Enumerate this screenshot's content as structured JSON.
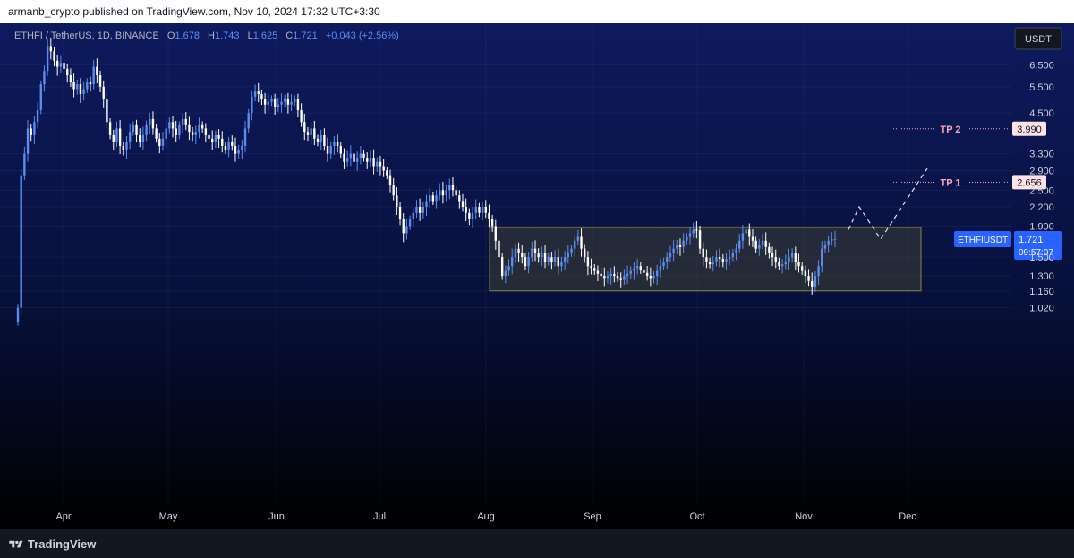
{
  "header": {
    "published_line": "armanb_crypto published on TradingView.com, Nov 10, 2024 17:32 UTC+3:30"
  },
  "symbol_bar": {
    "symbol": "ETHFI / TetherUS, 1D, BINANCE",
    "open_label": "O",
    "open": "1.678",
    "high_label": "H",
    "high": "1.743",
    "low_label": "L",
    "low": "1.625",
    "close_label": "C",
    "close": "1.721",
    "change": "+0.043 (+2.56%)"
  },
  "currency_button": "USDT",
  "footer": {
    "brand": "TradingView"
  },
  "colors": {
    "up": "#5b8def",
    "down": "#ffffff",
    "range_box_fill": "#5a5a2a",
    "range_box_border": "#8a8a3a",
    "target_line": "#f7a8b8",
    "price_tag": "#2962ff"
  },
  "chart_data": {
    "type": "candlestick",
    "title": "",
    "y_scale": "log",
    "ylim": [
      0.95,
      7.6
    ],
    "y_ticks": [
      "6.500",
      "5.500",
      "4.500",
      "3.990",
      "3.300",
      "2.900",
      "2.656",
      "2.500",
      "2.200",
      "1.900",
      "1.721",
      "1.500",
      "1.300",
      "1.160",
      "1.020"
    ],
    "x_ticks": [
      "Apr",
      "May",
      "Jun",
      "Jul",
      "Aug",
      "Sep",
      "Oct",
      "Nov",
      "Dec"
    ],
    "close_series": [
      1.02,
      2.8,
      3.3,
      4.0,
      3.8,
      4.2,
      4.6,
      5.6,
      6.2,
      7.5,
      7.2,
      6.7,
      6.4,
      6.6,
      6.3,
      6.0,
      5.7,
      5.4,
      5.6,
      5.2,
      5.4,
      5.7,
      5.6,
      6.4,
      6.0,
      5.5,
      5.0,
      4.2,
      3.8,
      3.6,
      4.0,
      3.5,
      3.4,
      3.6,
      3.9,
      4.1,
      3.8,
      3.6,
      3.8,
      4.1,
      4.3,
      4.0,
      3.7,
      3.5,
      3.7,
      4.0,
      4.2,
      4.0,
      3.8,
      4.1,
      4.3,
      4.1,
      3.9,
      3.8,
      3.9,
      4.1,
      4.0,
      3.8,
      3.7,
      3.6,
      3.8,
      3.7,
      3.5,
      3.4,
      3.6,
      3.5,
      3.3,
      3.4,
      3.5,
      4.0,
      4.5,
      5.1,
      5.3,
      5.2,
      5.0,
      4.8,
      4.9,
      5.0,
      4.7,
      4.8,
      4.9,
      5.0,
      4.8,
      4.9,
      5.0,
      4.6,
      4.2,
      3.9,
      3.8,
      4.0,
      3.7,
      3.6,
      3.8,
      3.5,
      3.3,
      3.5,
      3.6,
      3.5,
      3.3,
      3.1,
      3.2,
      3.3,
      3.1,
      3.2,
      3.3,
      3.2,
      3.1,
      3.2,
      3.0,
      3.1,
      3.0,
      2.9,
      2.8,
      2.6,
      2.4,
      2.2,
      2.0,
      1.8,
      1.9,
      2.0,
      2.1,
      2.2,
      2.1,
      2.2,
      2.3,
      2.4,
      2.3,
      2.4,
      2.5,
      2.4,
      2.5,
      2.6,
      2.5,
      2.4,
      2.3,
      2.2,
      2.1,
      2.0,
      2.1,
      2.2,
      2.1,
      2.2,
      2.1,
      2.0,
      1.9,
      1.7,
      1.5,
      1.3,
      1.35,
      1.4,
      1.5,
      1.6,
      1.55,
      1.5,
      1.4,
      1.5,
      1.6,
      1.55,
      1.5,
      1.55,
      1.45,
      1.5,
      1.45,
      1.5,
      1.4,
      1.45,
      1.5,
      1.55,
      1.6,
      1.7,
      1.75,
      1.6,
      1.5,
      1.4,
      1.38,
      1.35,
      1.32,
      1.3,
      1.28,
      1.3,
      1.32,
      1.3,
      1.28,
      1.26,
      1.3,
      1.32,
      1.35,
      1.38,
      1.4,
      1.36,
      1.33,
      1.3,
      1.28,
      1.3,
      1.35,
      1.4,
      1.45,
      1.5,
      1.55,
      1.6,
      1.65,
      1.62,
      1.7,
      1.75,
      1.8,
      1.85,
      1.84,
      1.6,
      1.5,
      1.45,
      1.42,
      1.45,
      1.5,
      1.48,
      1.45,
      1.48,
      1.5,
      1.55,
      1.6,
      1.7,
      1.8,
      1.85,
      1.75,
      1.7,
      1.6,
      1.65,
      1.7,
      1.62,
      1.55,
      1.5,
      1.45,
      1.4,
      1.42,
      1.45,
      1.5,
      1.55,
      1.45,
      1.4,
      1.35,
      1.3,
      1.25,
      1.2,
      1.3,
      1.4,
      1.6,
      1.65,
      1.7,
      1.72,
      1.721
    ],
    "annotations": [
      {
        "label": "TP 1",
        "price": "2.656"
      },
      {
        "label": "TP 2",
        "price": "3.990"
      },
      {
        "label": "ETHFIUSDT",
        "price": "1.721",
        "countdown": "09:57:07"
      }
    ],
    "range_box": {
      "low": 1.16,
      "high": 1.88
    },
    "projection_path": [
      1.85,
      2.2,
      1.72,
      2.95
    ]
  }
}
